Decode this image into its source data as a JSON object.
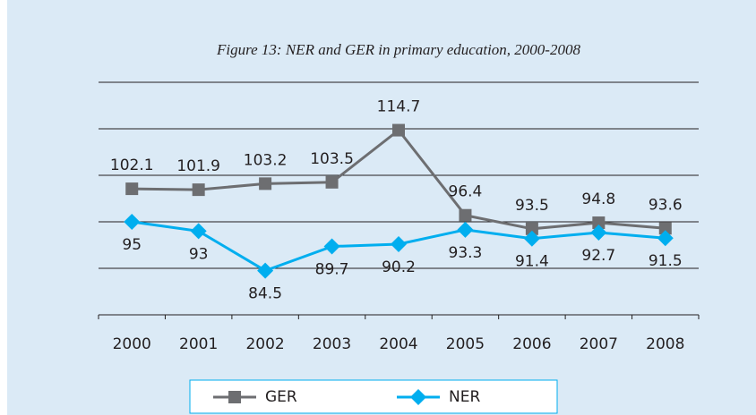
{
  "chart_data": {
    "type": "line",
    "title": "Figure 13: NER and GER in primary education, 2000-2008",
    "categories": [
      "2000",
      "2001",
      "2002",
      "2003",
      "2004",
      "2005",
      "2006",
      "2007",
      "2008"
    ],
    "series": [
      {
        "name": "GER",
        "color": "#6d6e71",
        "marker": "square",
        "values": [
          102.1,
          101.9,
          103.2,
          103.5,
          114.7,
          96.4,
          93.5,
          94.8,
          93.6
        ]
      },
      {
        "name": "NER",
        "color": "#00aeef",
        "marker": "diamond",
        "values": [
          95,
          93,
          84.5,
          89.7,
          90.2,
          93.3,
          91.4,
          92.7,
          91.5
        ]
      }
    ],
    "ylim": [
      75,
      125
    ],
    "yticks": [
      75,
      85,
      95,
      105,
      115,
      125
    ],
    "grid": true,
    "legend": "bottom"
  }
}
